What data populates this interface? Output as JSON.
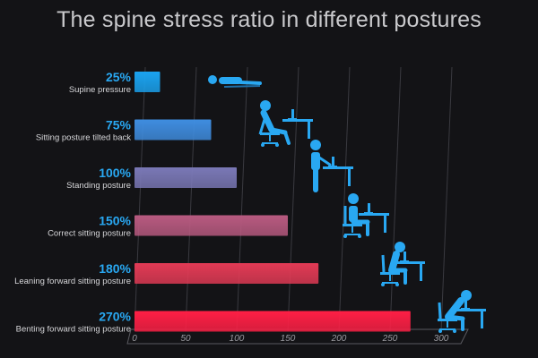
{
  "chart_data": {
    "type": "bar",
    "orientation": "horizontal",
    "title": "The spine stress ratio in different postures",
    "xlabel": "",
    "ylabel": "",
    "xlim": [
      0,
      300
    ],
    "xticks": [
      "0",
      "50",
      "100",
      "150",
      "200",
      "250",
      "300"
    ],
    "grid": true,
    "categories": [
      "Supine pressure",
      "Sitting posture tilted back",
      "Standing posture",
      "Correct sitting posture",
      "Leaning forward sitting posture",
      "Benting forward sitting posture"
    ],
    "values": [
      25,
      75,
      100,
      150,
      180,
      270
    ],
    "value_labels": [
      "25%",
      "75%",
      "100%",
      "150%",
      "180%",
      "270%"
    ],
    "colors": [
      "#1aa3f0",
      "#3f8de0",
      "#7a78b6",
      "#b85a80",
      "#e23a55",
      "#ff1f45"
    ],
    "label_color": "#29a8f2",
    "icons": [
      "lying-person-icon",
      "reclined-seated-person-icon",
      "standing-person-icon",
      "upright-seated-person-icon",
      "leaning-seated-person-icon",
      "bent-seated-person-icon"
    ]
  }
}
